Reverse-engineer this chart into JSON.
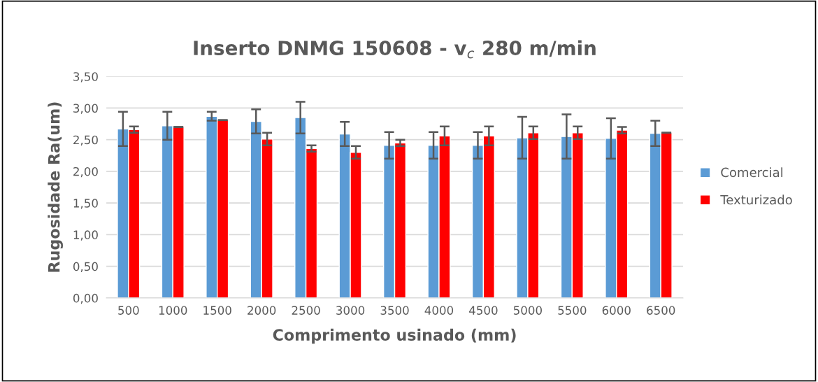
{
  "chart_data": {
    "type": "bar",
    "title": "Inserto DNMG 150608 - v$_{c}$ 280 m/min",
    "xlabel": "Comprimento usinado (mm)",
    "ylabel": "Rugosidade Ra(um)",
    "categories": [
      "500",
      "1000",
      "1500",
      "2000",
      "2500",
      "3000",
      "3500",
      "4000",
      "4500",
      "5000",
      "5500",
      "6000",
      "6500"
    ],
    "series": [
      {
        "name": "Comercial",
        "color": "#5b9bd5",
        "values": [
          2.67,
          2.72,
          2.87,
          2.79,
          2.85,
          2.59,
          2.41,
          2.41,
          2.41,
          2.53,
          2.55,
          2.52,
          2.6
        ],
        "errors": [
          0.27,
          0.22,
          0.07,
          0.19,
          0.25,
          0.19,
          0.21,
          0.21,
          0.21,
          0.33,
          0.35,
          0.32,
          0.2
        ]
      },
      {
        "name": "Texturizado",
        "color": "#ff0000",
        "values": [
          2.66,
          2.7,
          2.81,
          2.51,
          2.36,
          2.3,
          2.45,
          2.56,
          2.56,
          2.61,
          2.61,
          2.65,
          2.61
        ],
        "errors": [
          0.05,
          0,
          0,
          0.1,
          0.05,
          0.1,
          0.05,
          0.15,
          0.15,
          0.1,
          0.1,
          0.05,
          0
        ]
      }
    ],
    "ylim": [
      0,
      3.5
    ],
    "yticks": [
      {
        "value": 0,
        "label": "0,00"
      },
      {
        "value": 0.5,
        "label": "0,50"
      },
      {
        "value": 1,
        "label": "1,00"
      },
      {
        "value": 1.5,
        "label": "1,50"
      },
      {
        "value": 2,
        "label": "2,00"
      },
      {
        "value": 2.5,
        "label": "2,50"
      },
      {
        "value": 3,
        "label": "3,00"
      },
      {
        "value": 3.5,
        "label": "3,50"
      }
    ],
    "grid": "y",
    "legend": "right"
  }
}
